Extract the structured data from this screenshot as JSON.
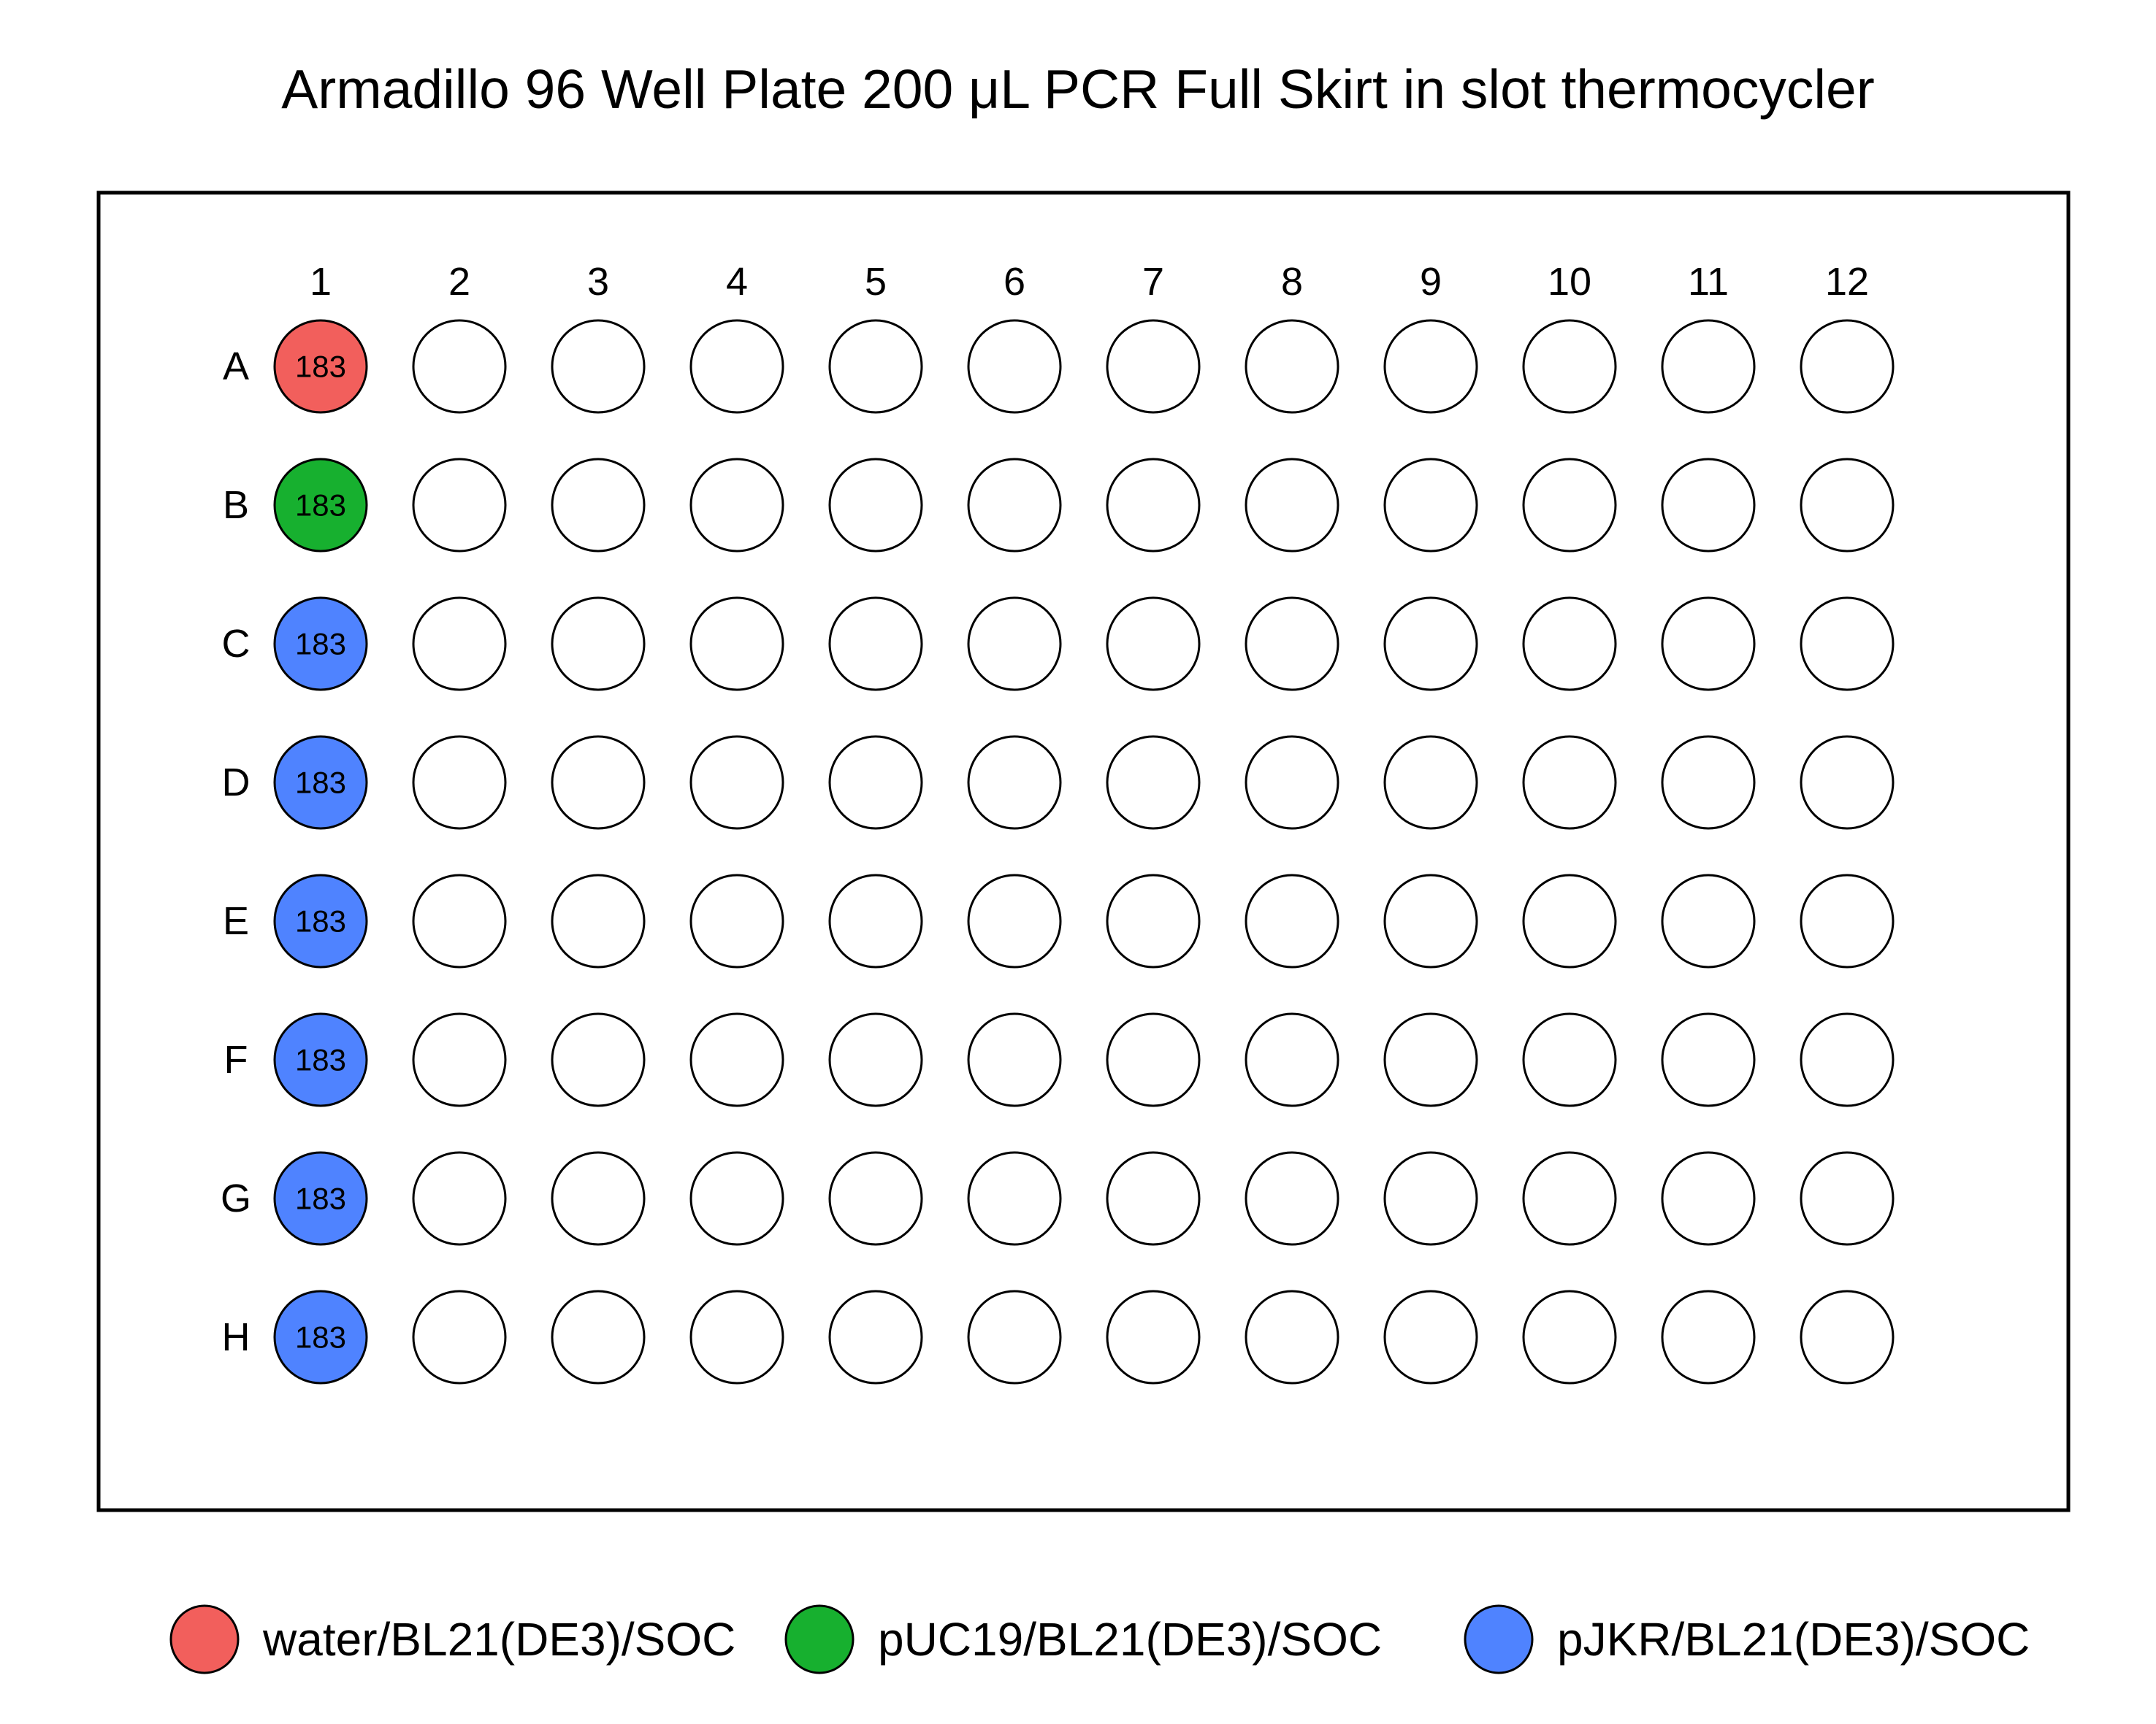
{
  "title": "Armadillo 96 Well Plate 200 μL PCR Full Skirt in slot thermocycler",
  "plate": {
    "columns": [
      "1",
      "2",
      "3",
      "4",
      "5",
      "6",
      "7",
      "8",
      "9",
      "10",
      "11",
      "12"
    ],
    "rows": [
      "A",
      "B",
      "C",
      "D",
      "E",
      "F",
      "G",
      "H"
    ],
    "empty_fill": "#ffffff",
    "filled_wells": [
      {
        "well": "A1",
        "row": "A",
        "col": "1",
        "label": "183",
        "group": "water"
      },
      {
        "well": "B1",
        "row": "B",
        "col": "1",
        "label": "183",
        "group": "pUC19"
      },
      {
        "well": "C1",
        "row": "C",
        "col": "1",
        "label": "183",
        "group": "pJKR"
      },
      {
        "well": "D1",
        "row": "D",
        "col": "1",
        "label": "183",
        "group": "pJKR"
      },
      {
        "well": "E1",
        "row": "E",
        "col": "1",
        "label": "183",
        "group": "pJKR"
      },
      {
        "well": "F1",
        "row": "F",
        "col": "1",
        "label": "183",
        "group": "pJKR"
      },
      {
        "well": "G1",
        "row": "G",
        "col": "1",
        "label": "183",
        "group": "pJKR"
      },
      {
        "well": "H1",
        "row": "H",
        "col": "1",
        "label": "183",
        "group": "pJKR"
      }
    ]
  },
  "legend": [
    {
      "group": "water",
      "label": "water/BL21(DE3)/SOC",
      "color": "#f25f5c"
    },
    {
      "group": "pUC19",
      "label": "pUC19/BL21(DE3)/SOC",
      "color": "#17b02f"
    },
    {
      "group": "pJKR",
      "label": "pJKR/BL21(DE3)/SOC",
      "color": "#4f83ff"
    }
  ]
}
